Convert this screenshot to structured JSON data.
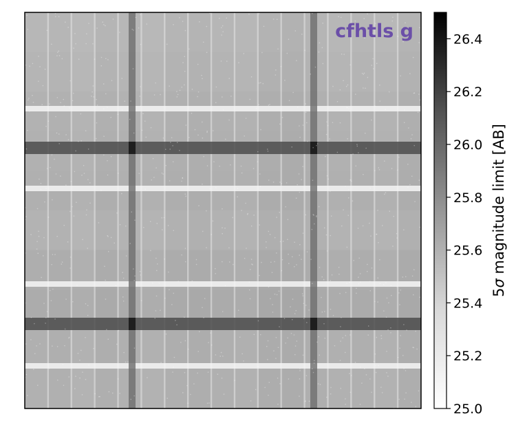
{
  "chart_data": {
    "type": "heatmap",
    "title": "cfhtls g",
    "colorbar": {
      "label_prefix": "5",
      "label_symbol": "σ",
      "label_suffix": " magnitude limit [AB]",
      "range": [
        25.0,
        26.5
      ],
      "ticks": [
        25.0,
        25.2,
        25.4,
        25.6,
        25.8,
        26.0,
        26.2,
        26.4
      ],
      "tick_labels": [
        "25.0",
        "25.2",
        "25.4",
        "25.6",
        "25.8",
        "26.0",
        "26.2",
        "26.4"
      ],
      "colormap": "Greys"
    },
    "axes": {
      "xticks": false,
      "yticks": false,
      "grid": false
    },
    "map": {
      "background_level": 25.45,
      "column_levels": [
        25.42,
        25.44,
        25.4,
        25.46,
        25.43,
        25.41,
        25.45,
        25.47,
        25.44,
        25.43,
        25.48,
        25.5,
        25.46,
        25.42,
        25.44,
        25.41,
        25.47
      ],
      "row_levels": [
        25.4,
        25.44,
        25.48,
        25.5,
        25.52,
        25.47,
        25.55,
        25.58,
        25.53,
        25.5
      ],
      "dark_vertical_bands_level": 25.85,
      "dark_horizontal_bands_level": 26.05,
      "band_intersection_level": 26.45,
      "bright_horizontal_stripes_level": 25.05,
      "bright_vertical_gaps_level": 25.15
    }
  },
  "colors": {
    "title": "#6b4fa8",
    "frame": "#000000"
  }
}
